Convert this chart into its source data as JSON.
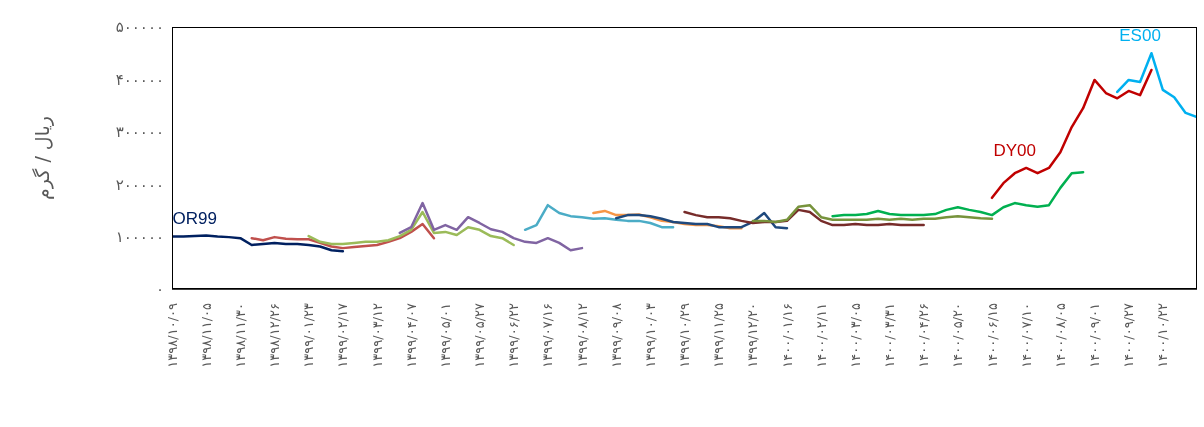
{
  "chart_data": {
    "type": "line",
    "ylabel": "ریال / گرم",
    "categories": [
      "۱۳۹۸/۱۰/۰۹",
      null,
      null,
      "۱۳۹۸/۱۱/۰۵",
      null,
      null,
      "۱۳۹۸/۱۱/۳۰",
      null,
      null,
      "۱۳۹۸/۱۲/۲۶",
      null,
      null,
      "۱۳۹۹/۰۱/۲۳",
      null,
      null,
      "۱۳۹۹/۰۲/۱۷",
      null,
      null,
      "۱۳۹۹/۰۳/۱۲",
      null,
      null,
      "۱۳۹۹/۰۴/۰۷",
      null,
      null,
      "۱۳۹۹/۰۵/۰۱",
      null,
      null,
      "۱۳۹۹/۰۵/۲۷",
      null,
      null,
      "۱۳۹۹/۰۶/۲۲",
      null,
      null,
      "۱۳۹۹/۰۷/۱۶",
      null,
      null,
      "۱۳۹۹/۰۸/۱۲",
      null,
      null,
      "۱۳۹۹/۰۹/۰۸",
      null,
      null,
      "۱۳۹۹/۱۰/۰۳",
      null,
      null,
      "۱۳۹۹/۱۰/۲۹",
      null,
      null,
      "۱۳۹۹/۱۱/۲۵",
      null,
      null,
      "۱۳۹۹/۱۲/۲۰",
      null,
      null,
      "۱۴۰۰/۰۱/۱۶",
      null,
      null,
      "۱۴۰۰/۰۲/۱۱",
      null,
      null,
      "۱۴۰۰/۰۳/۰۵",
      null,
      null,
      "۱۴۰۰/۰۳/۳۱",
      null,
      null,
      "۱۴۰۰/۰۴/۲۶",
      null,
      null,
      "۱۴۰۰/۰۵/۲۰",
      null,
      null,
      "۱۴۰۰/۰۶/۱۵",
      null,
      null,
      "۱۴۰۰/۰۷/۱۰",
      null,
      null,
      "۱۴۰۰/۰۸/۰۵",
      null,
      null,
      "۱۴۰۰/۰۹/۰۱",
      null,
      null,
      "۱۴۰۰/۰۹/۲۷",
      null,
      null,
      "۱۴۰۰/۱۰/۲۲",
      null,
      null,
      null
    ],
    "ylim": [
      0,
      500000
    ],
    "yticks": [
      {
        "value": 0,
        "label": "۰"
      },
      {
        "value": 100000,
        "label": "۱۰۰۰۰۰"
      },
      {
        "value": 200000,
        "label": "۲۰۰۰۰۰"
      },
      {
        "value": 300000,
        "label": "۳۰۰۰۰۰"
      },
      {
        "value": 400000,
        "label": "۴۰۰۰۰۰"
      },
      {
        "value": 500000,
        "label": "۵۰۰۰۰۰"
      }
    ],
    "series": [
      {
        "name": "OR99",
        "color": "#002060",
        "values": [
          100000,
          100000,
          101000,
          102000,
          100000,
          99000,
          97000,
          84000,
          86000,
          88000,
          86000,
          86000,
          84000,
          81000,
          74000,
          72000,
          null,
          null,
          null,
          null,
          null,
          null,
          null,
          null,
          null,
          null,
          null,
          null,
          null,
          null,
          null,
          null,
          null,
          null,
          null,
          null,
          null,
          null,
          null,
          null,
          null,
          null,
          null,
          null,
          null,
          null,
          null,
          null,
          null,
          null,
          null,
          null,
          null,
          null,
          null,
          null,
          null,
          null,
          null,
          null,
          null,
          null,
          null,
          null,
          null,
          null,
          null,
          null,
          null,
          null,
          null,
          null,
          null,
          null,
          null,
          null,
          null,
          null,
          null,
          null,
          null,
          null,
          null,
          null,
          null,
          null,
          null,
          null,
          null,
          null,
          null
        ]
      },
      {
        "color": "#c0504d",
        "values": [
          null,
          null,
          null,
          null,
          null,
          null,
          null,
          97000,
          93000,
          99000,
          96000,
          95000,
          95000,
          88000,
          81000,
          78000,
          80000,
          82000,
          84000,
          90000,
          97000,
          109000,
          124000,
          97000,
          null,
          null,
          null,
          null,
          null,
          null,
          null,
          null,
          null,
          null,
          null,
          null,
          null,
          null,
          null,
          null,
          null,
          null,
          null,
          null,
          null,
          null,
          null,
          null,
          null,
          null,
          null,
          null,
          null,
          null,
          null,
          null,
          null,
          null,
          null,
          null,
          null,
          null,
          null,
          null,
          null,
          null,
          null,
          null,
          null,
          null,
          null,
          null,
          null,
          null,
          null,
          null,
          null,
          null,
          null,
          null,
          null,
          null,
          null,
          null,
          null,
          null,
          null,
          null,
          null,
          null,
          null
        ]
      },
      {
        "color": "#9bbb59",
        "values": [
          null,
          null,
          null,
          null,
          null,
          null,
          null,
          null,
          null,
          null,
          null,
          null,
          101000,
          90000,
          86000,
          86000,
          88000,
          90000,
          90000,
          93000,
          101000,
          113000,
          147000,
          107000,
          109000,
          103000,
          118000,
          113000,
          101000,
          97000,
          84000,
          null,
          null,
          null,
          null,
          null,
          null,
          null,
          null,
          null,
          null,
          null,
          null,
          null,
          null,
          null,
          null,
          null,
          null,
          null,
          null,
          null,
          null,
          null,
          null,
          null,
          null,
          null,
          null,
          null,
          null,
          null,
          null,
          null,
          null,
          null,
          null,
          null,
          null,
          null,
          null,
          null,
          null,
          null,
          null,
          null,
          null,
          null,
          null,
          null,
          null,
          null,
          null,
          null,
          null,
          null,
          null,
          null,
          null,
          null,
          null
        ]
      },
      {
        "color": "#8064a2",
        "values": [
          null,
          null,
          null,
          null,
          null,
          null,
          null,
          null,
          null,
          null,
          null,
          null,
          null,
          null,
          null,
          null,
          null,
          null,
          null,
          null,
          107000,
          118000,
          164000,
          113000,
          122000,
          113000,
          137000,
          126000,
          114000,
          109000,
          97000,
          90000,
          88000,
          97000,
          88000,
          74000,
          78000,
          null,
          null,
          null,
          null,
          null,
          null,
          null,
          null,
          null,
          null,
          null,
          null,
          null,
          null,
          null,
          null,
          null,
          null,
          null,
          null,
          null,
          null,
          null,
          null,
          null,
          null,
          null,
          null,
          null,
          null,
          null,
          null,
          null,
          null,
          null,
          null,
          null,
          null,
          null,
          null,
          null,
          null,
          null,
          null,
          null,
          null,
          null,
          null,
          null,
          null,
          null,
          null,
          null,
          null
        ]
      },
      {
        "color": "#4bacc6",
        "values": [
          null,
          null,
          null,
          null,
          null,
          null,
          null,
          null,
          null,
          null,
          null,
          null,
          null,
          null,
          null,
          null,
          null,
          null,
          null,
          null,
          null,
          null,
          null,
          null,
          null,
          null,
          null,
          null,
          null,
          null,
          null,
          113000,
          122000,
          160000,
          145000,
          139000,
          137000,
          134000,
          135000,
          132000,
          130000,
          130000,
          126000,
          118000,
          118000,
          null,
          null,
          null,
          null,
          null,
          null,
          null,
          null,
          null,
          null,
          null,
          null,
          null,
          null,
          null,
          null,
          null,
          null,
          null,
          null,
          null,
          null,
          null,
          null,
          null,
          null,
          null,
          null,
          null,
          null,
          null,
          null,
          null,
          null,
          null,
          null,
          null,
          null,
          null,
          null,
          null,
          null,
          null,
          null,
          null,
          null
        ]
      },
      {
        "color": "#f79646",
        "values": [
          null,
          null,
          null,
          null,
          null,
          null,
          null,
          null,
          null,
          null,
          null,
          null,
          null,
          null,
          null,
          null,
          null,
          null,
          null,
          null,
          null,
          null,
          null,
          null,
          null,
          null,
          null,
          null,
          null,
          null,
          null,
          null,
          null,
          null,
          null,
          null,
          null,
          145000,
          149000,
          141000,
          141000,
          142000,
          137000,
          130000,
          128000,
          124000,
          122000,
          122000,
          120000,
          116000,
          116000,
          null,
          null,
          null,
          null,
          null,
          null,
          null,
          null,
          null,
          null,
          null,
          null,
          null,
          null,
          null,
          null,
          null,
          null,
          null,
          null,
          null,
          null,
          null,
          null,
          null,
          null,
          null,
          null,
          null,
          null,
          null,
          null,
          null,
          null,
          null,
          null,
          null,
          null,
          null,
          null
        ]
      },
      {
        "color": "#1f497d",
        "values": [
          null,
          null,
          null,
          null,
          null,
          null,
          null,
          null,
          null,
          null,
          null,
          null,
          null,
          null,
          null,
          null,
          null,
          null,
          null,
          null,
          null,
          null,
          null,
          null,
          null,
          null,
          null,
          null,
          null,
          null,
          null,
          null,
          null,
          null,
          null,
          null,
          null,
          null,
          null,
          135000,
          141000,
          141000,
          139000,
          134000,
          128000,
          126000,
          124000,
          124000,
          118000,
          118000,
          118000,
          128000,
          145000,
          118000,
          116000,
          null,
          null,
          null,
          null,
          null,
          null,
          null,
          null,
          null,
          null,
          null,
          null,
          null,
          null,
          null,
          null,
          null,
          null,
          null,
          null,
          null,
          null,
          null,
          null,
          null,
          null,
          null,
          null,
          null,
          null,
          null,
          null,
          null,
          null,
          null,
          null
        ]
      },
      {
        "color": "#772c2a",
        "values": [
          null,
          null,
          null,
          null,
          null,
          null,
          null,
          null,
          null,
          null,
          null,
          null,
          null,
          null,
          null,
          null,
          null,
          null,
          null,
          null,
          null,
          null,
          null,
          null,
          null,
          null,
          null,
          null,
          null,
          null,
          null,
          null,
          null,
          null,
          null,
          null,
          null,
          null,
          null,
          null,
          null,
          null,
          null,
          null,
          null,
          147000,
          141000,
          137000,
          137000,
          135000,
          130000,
          126000,
          128000,
          128000,
          130000,
          151000,
          147000,
          130000,
          122000,
          122000,
          124000,
          122000,
          122000,
          124000,
          122000,
          122000,
          122000,
          null,
          null,
          null,
          null,
          null,
          null,
          null,
          null,
          null,
          null,
          null,
          null,
          null,
          null,
          null,
          null,
          null,
          null,
          null,
          null,
          null,
          null,
          null,
          null
        ]
      },
      {
        "color": "#77933c",
        "values": [
          null,
          null,
          null,
          null,
          null,
          null,
          null,
          null,
          null,
          null,
          null,
          null,
          null,
          null,
          null,
          null,
          null,
          null,
          null,
          null,
          null,
          null,
          null,
          null,
          null,
          null,
          null,
          null,
          null,
          null,
          null,
          null,
          null,
          null,
          null,
          null,
          null,
          null,
          null,
          null,
          null,
          null,
          null,
          null,
          null,
          null,
          null,
          null,
          null,
          null,
          null,
          130000,
          130000,
          128000,
          132000,
          157000,
          160000,
          137000,
          132000,
          132000,
          132000,
          132000,
          134000,
          132000,
          134000,
          132000,
          134000,
          134000,
          137000,
          139000,
          137000,
          135000,
          134000,
          null,
          null,
          null,
          null,
          null,
          null,
          null,
          null,
          null,
          null,
          null,
          null,
          null,
          null,
          null,
          null,
          null,
          null
        ]
      },
      {
        "color": "#00b050",
        "values": [
          null,
          null,
          null,
          null,
          null,
          null,
          null,
          null,
          null,
          null,
          null,
          null,
          null,
          null,
          null,
          null,
          null,
          null,
          null,
          null,
          null,
          null,
          null,
          null,
          null,
          null,
          null,
          null,
          null,
          null,
          null,
          null,
          null,
          null,
          null,
          null,
          null,
          null,
          null,
          null,
          null,
          null,
          null,
          null,
          null,
          null,
          null,
          null,
          null,
          null,
          null,
          null,
          null,
          null,
          null,
          null,
          null,
          null,
          139000,
          141000,
          141000,
          143000,
          149000,
          143000,
          141000,
          141000,
          141000,
          143000,
          151000,
          156000,
          151000,
          147000,
          141000,
          156000,
          164000,
          160000,
          157000,
          160000,
          193000,
          221000,
          223000,
          null,
          null,
          null,
          null,
          null,
          null,
          null,
          null,
          null,
          null
        ]
      },
      {
        "name": "DY00",
        "color": "#c00000",
        "values": [
          null,
          null,
          null,
          null,
          null,
          null,
          null,
          null,
          null,
          null,
          null,
          null,
          null,
          null,
          null,
          null,
          null,
          null,
          null,
          null,
          null,
          null,
          null,
          null,
          null,
          null,
          null,
          null,
          null,
          null,
          null,
          null,
          null,
          null,
          null,
          null,
          null,
          null,
          null,
          null,
          null,
          null,
          null,
          null,
          null,
          null,
          null,
          null,
          null,
          null,
          null,
          null,
          null,
          null,
          null,
          null,
          null,
          null,
          null,
          null,
          null,
          null,
          null,
          null,
          null,
          null,
          null,
          null,
          null,
          null,
          null,
          null,
          174000,
          202000,
          221000,
          231000,
          221000,
          231000,
          261000,
          309000,
          345000,
          399000,
          374000,
          364000,
          378000,
          370000,
          418000,
          null,
          null,
          null,
          null
        ]
      },
      {
        "name": "ES00",
        "color": "#00b0f0",
        "values": [
          null,
          null,
          null,
          null,
          null,
          null,
          null,
          null,
          null,
          null,
          null,
          null,
          null,
          null,
          null,
          null,
          null,
          null,
          null,
          null,
          null,
          null,
          null,
          null,
          null,
          null,
          null,
          null,
          null,
          null,
          null,
          null,
          null,
          null,
          null,
          null,
          null,
          null,
          null,
          null,
          null,
          null,
          null,
          null,
          null,
          null,
          null,
          null,
          null,
          null,
          null,
          null,
          null,
          null,
          null,
          null,
          null,
          null,
          null,
          null,
          null,
          null,
          null,
          null,
          null,
          null,
          null,
          null,
          null,
          null,
          null,
          null,
          null,
          null,
          null,
          null,
          null,
          null,
          null,
          null,
          null,
          null,
          null,
          376000,
          399000,
          395000,
          450000,
          380000,
          366000,
          336000,
          328000
        ]
      }
    ]
  }
}
